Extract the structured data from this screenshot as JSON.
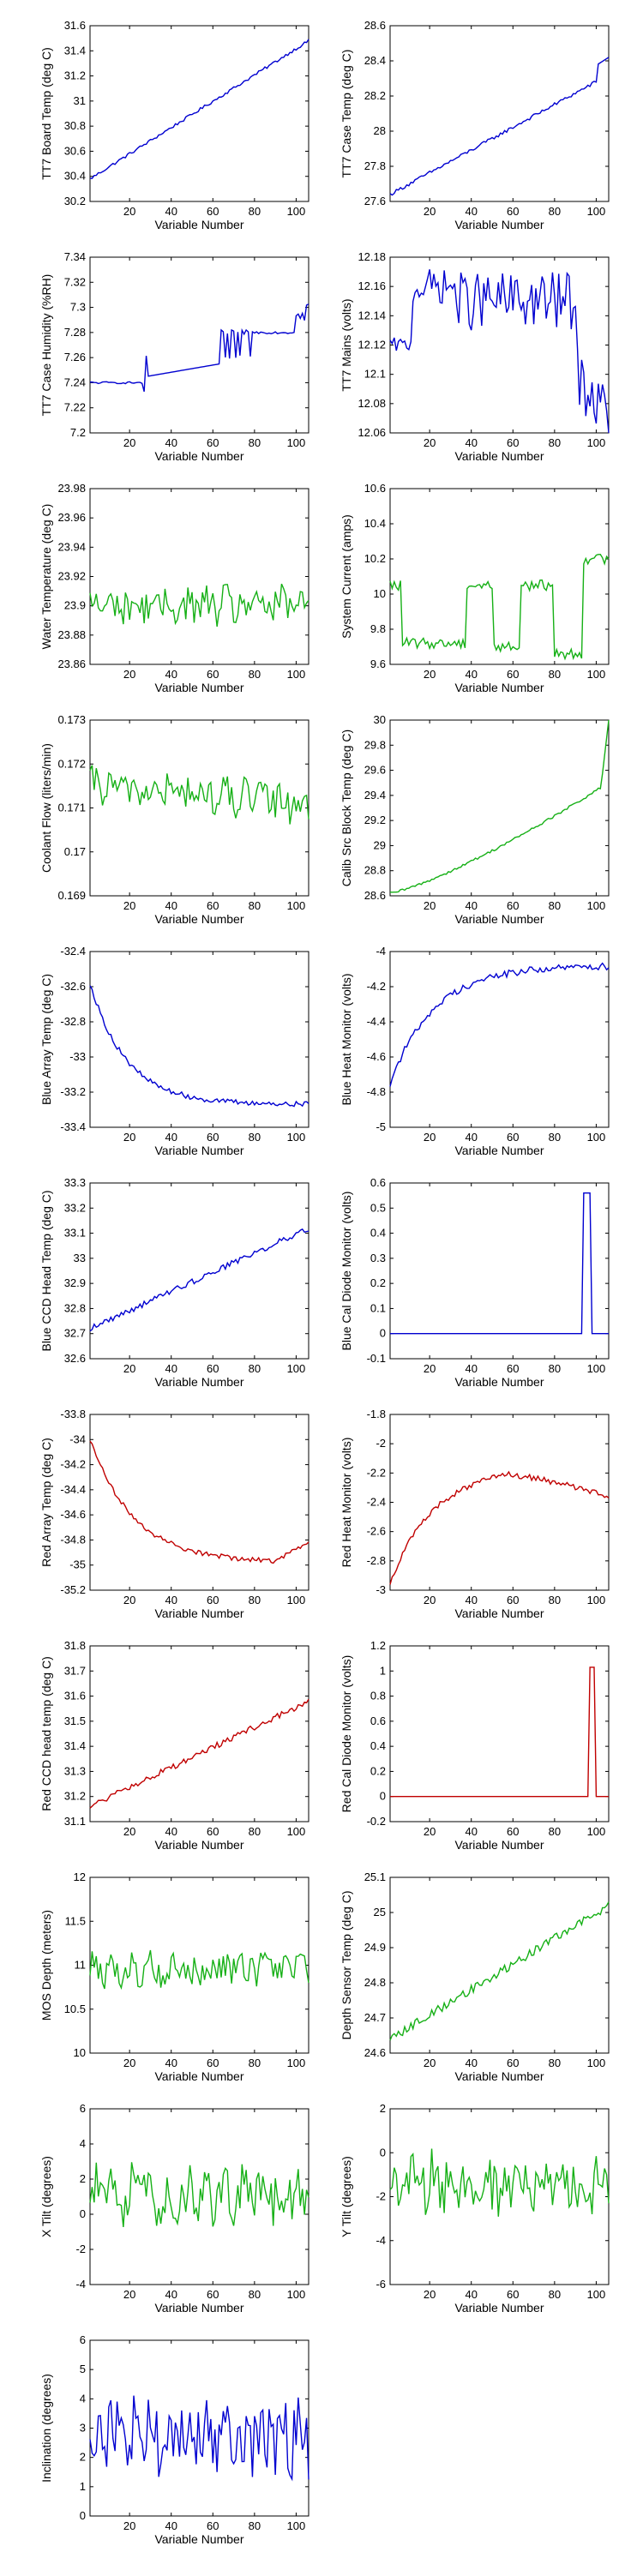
{
  "colors": {
    "blue": "#0000d0",
    "green": "#16b016",
    "red": "#c00000"
  },
  "chart_data": [
    {
      "type": "line",
      "ylabel": "TT7 Board Temp (deg C)",
      "xlabel": "Variable Number",
      "ylim": [
        30.2,
        31.6
      ],
      "yticks": [
        "30.2",
        "30.4",
        "30.6",
        "30.8",
        "31",
        "31.2",
        "31.4",
        "31.6"
      ],
      "color": "blue",
      "gen": {
        "kind": "trend",
        "y0": 30.38,
        "y1": 31.48,
        "noise": 0.012
      }
    },
    {
      "type": "line",
      "ylabel": "TT7 Case Temp (deg C)",
      "xlabel": "Variable Number",
      "ylim": [
        27.6,
        28.6
      ],
      "yticks": [
        "27.6",
        "27.8",
        "28",
        "28.2",
        "28.4",
        "28.6"
      ],
      "color": "blue",
      "gen": {
        "kind": "trend",
        "y0": 27.64,
        "y1": 28.32,
        "noise": 0.01,
        "tail": [
          0.95,
          28.38,
          1.0,
          28.42
        ]
      }
    },
    {
      "type": "line",
      "ylabel": "TT7 Case Humidity (%RH)",
      "xlabel": "Variable Number",
      "ylim": [
        7.2,
        7.34
      ],
      "yticks": [
        "7.2",
        "7.22",
        "7.24",
        "7.26",
        "7.28",
        "7.3",
        "7.32",
        "7.34"
      ],
      "color": "blue",
      "gen": {
        "kind": "humidity"
      }
    },
    {
      "type": "line",
      "ylabel": "TT7 Mains (volts)",
      "xlabel": "Variable Number",
      "ylim": [
        12.06,
        12.18
      ],
      "yticks": [
        "12.06",
        "12.08",
        "12.1",
        "12.12",
        "12.14",
        "12.16",
        "12.18"
      ],
      "color": "blue",
      "gen": {
        "kind": "mains"
      }
    },
    {
      "type": "line",
      "ylabel": "Water Temperature (deg C)",
      "xlabel": "Variable Number",
      "ylim": [
        23.86,
        23.98
      ],
      "yticks": [
        "23.86",
        "23.88",
        "23.9",
        "23.92",
        "23.94",
        "23.96",
        "23.98"
      ],
      "color": "green",
      "gen": {
        "kind": "noise",
        "mean": 23.9,
        "amp": 0.012
      }
    },
    {
      "type": "line",
      "ylabel": "System Current (amps)",
      "xlabel": "Variable Number",
      "ylim": [
        9.6,
        10.6
      ],
      "yticks": [
        "9.6",
        "9.8",
        "10",
        "10.2",
        "10.4",
        "10.6"
      ],
      "color": "green",
      "gen": {
        "kind": "steps",
        "segs": [
          [
            0,
            0.05,
            10.05
          ],
          [
            0.05,
            0.35,
            9.72
          ],
          [
            0.35,
            0.47,
            10.05
          ],
          [
            0.47,
            0.6,
            9.7
          ],
          [
            0.6,
            0.75,
            10.05
          ],
          [
            0.75,
            0.88,
            9.66
          ],
          [
            0.88,
            1,
            10.2
          ]
        ],
        "noise": 0.03
      }
    },
    {
      "type": "line",
      "ylabel": "Coolant Flow (liters/min)",
      "xlabel": "Variable Number",
      "ylim": [
        0.169,
        0.173
      ],
      "yticks": [
        "0.169",
        "0.17",
        "0.171",
        "0.172",
        "0.173"
      ],
      "color": "green",
      "gen": {
        "kind": "noise",
        "mean": 0.1715,
        "amp": 0.0004,
        "drift": -0.0004
      }
    },
    {
      "type": "line",
      "ylabel": "Calib Src Block Temp (deg C)",
      "xlabel": "Variable Number",
      "ylim": [
        28.6,
        30
      ],
      "yticks": [
        "28.6",
        "28.8",
        "29",
        "29.2",
        "29.4",
        "29.6",
        "29.8",
        "30"
      ],
      "color": "green",
      "gen": {
        "kind": "curve",
        "y0": 28.62,
        "y1": 29.5,
        "pow": 1.25,
        "noise": 0.01,
        "tail": [
          0.97,
          29.55,
          1.0,
          30.0
        ]
      }
    },
    {
      "type": "line",
      "ylabel": "Blue Array Temp (deg C)",
      "xlabel": "Variable Number",
      "ylim": [
        -33.4,
        -32.4
      ],
      "yticks": [
        "-33.4",
        "-33.2",
        "-33",
        "-32.8",
        "-32.6",
        "-32.4"
      ],
      "color": "blue",
      "gen": {
        "kind": "decay",
        "y0": -32.58,
        "y1": -33.27,
        "k": 6,
        "noise": 0.015
      }
    },
    {
      "type": "line",
      "ylabel": "Blue Heat Monitor (volts)",
      "xlabel": "Variable Number",
      "ylim": [
        -5,
        -4
      ],
      "yticks": [
        "-5",
        "-4.8",
        "-4.6",
        "-4.4",
        "-4.2",
        "-4"
      ],
      "color": "blue",
      "gen": {
        "kind": "rise",
        "y0": -4.75,
        "y1": -4.08,
        "k": 5,
        "noise": 0.02
      }
    },
    {
      "type": "line",
      "ylabel": "Blue CCD Head Temp (deg C)",
      "xlabel": "Variable Number",
      "ylim": [
        32.6,
        33.3
      ],
      "yticks": [
        "32.6",
        "32.7",
        "32.8",
        "32.9",
        "33",
        "33.1",
        "33.2",
        "33.3"
      ],
      "color": "blue",
      "gen": {
        "kind": "trend",
        "y0": 32.72,
        "y1": 33.12,
        "noise": 0.012
      }
    },
    {
      "type": "line",
      "ylabel": "Blue Cal Diode Monitor (volts)",
      "xlabel": "Variable Number",
      "ylim": [
        -0.1,
        0.6
      ],
      "yticks": [
        "-0.1",
        "0",
        "0.1",
        "0.2",
        "0.3",
        "0.4",
        "0.5",
        "0.6"
      ],
      "color": "blue",
      "gen": {
        "kind": "pulse",
        "base": 0,
        "peak": 0.56,
        "start": 0.88,
        "end": 0.92
      }
    },
    {
      "type": "line",
      "ylabel": "Red Array Temp (deg C)",
      "xlabel": "Variable Number",
      "ylim": [
        -35.2,
        -33.8
      ],
      "yticks": [
        "-35.2",
        "-35",
        "-34.8",
        "-34.6",
        "-34.4",
        "-34.2",
        "-34",
        "-33.8"
      ],
      "color": "red",
      "gen": {
        "kind": "decay",
        "y0": -34.0,
        "y1": -34.98,
        "k": 5,
        "noise": 0.02,
        "bump": [
          0.85,
          -34.82
        ]
      }
    },
    {
      "type": "line",
      "ylabel": "Red Heat Monitor (volts)",
      "xlabel": "Variable Number",
      "ylim": [
        -3,
        -1.8
      ],
      "yticks": [
        "-3",
        "-2.8",
        "-2.6",
        "-2.4",
        "-2.2",
        "-2",
        "-1.8"
      ],
      "color": "red",
      "gen": {
        "kind": "arch",
        "y0": -2.95,
        "peak": -2.16,
        "yend": -2.35,
        "noise": 0.02
      }
    },
    {
      "type": "line",
      "ylabel": "Red CCD head temp (deg C)",
      "xlabel": "Variable Number",
      "ylim": [
        31.1,
        31.8
      ],
      "yticks": [
        "31.1",
        "31.2",
        "31.3",
        "31.4",
        "31.5",
        "31.6",
        "31.7",
        "31.8"
      ],
      "color": "red",
      "gen": {
        "kind": "trend",
        "y0": 31.16,
        "y1": 31.58,
        "noise": 0.012
      }
    },
    {
      "type": "line",
      "ylabel": "Red Cal Diode Monitor (volts)",
      "xlabel": "Variable Number",
      "ylim": [
        -0.2,
        1.2
      ],
      "yticks": [
        "-0.2",
        "0",
        "0.2",
        "0.4",
        "0.6",
        "0.8",
        "1",
        "1.2"
      ],
      "color": "red",
      "gen": {
        "kind": "pulse",
        "base": 0,
        "peak": 1.03,
        "start": 0.91,
        "end": 0.94
      }
    },
    {
      "type": "line",
      "ylabel": "MOS Depth  (meters)",
      "xlabel": "Variable Number",
      "ylim": [
        10,
        12
      ],
      "yticks": [
        "10",
        "10.5",
        "11",
        "11.5",
        "12"
      ],
      "color": "green",
      "gen": {
        "kind": "noise",
        "mean": 10.95,
        "amp": 0.18
      }
    },
    {
      "type": "line",
      "ylabel": "Depth Sensor Temp (deg C)",
      "xlabel": "Variable Number",
      "ylim": [
        24.6,
        25.1
      ],
      "yticks": [
        "24.6",
        "24.7",
        "24.8",
        "24.9",
        "25",
        "25.1"
      ],
      "color": "green",
      "gen": {
        "kind": "trend",
        "y0": 24.64,
        "y1": 25.02,
        "noise": 0.012
      }
    },
    {
      "type": "line",
      "ylabel": "X Tilt  (degrees)",
      "xlabel": "Variable Number",
      "ylim": [
        -4,
        6
      ],
      "yticks": [
        "-4",
        "-2",
        "0",
        "2",
        "4",
        "6"
      ],
      "color": "green",
      "gen": {
        "kind": "noise",
        "mean": 1.0,
        "amp": 1.6
      }
    },
    {
      "type": "line",
      "ylabel": "Y Tilt  (degrees)",
      "xlabel": "Variable Number",
      "ylim": [
        -6,
        2
      ],
      "yticks": [
        "-6",
        "-4",
        "-2",
        "0",
        "2"
      ],
      "color": "green",
      "gen": {
        "kind": "noise",
        "mean": -1.5,
        "amp": 1.3
      }
    },
    {
      "type": "line",
      "ylabel": "Inclination  (degrees)",
      "xlabel": "Variable Number",
      "ylim": [
        0,
        6
      ],
      "yticks": [
        "0",
        "1",
        "2",
        "3",
        "4",
        "5",
        "6"
      ],
      "color": "blue",
      "gen": {
        "kind": "noise",
        "mean": 2.7,
        "amp": 1.2
      }
    }
  ],
  "xaxis": {
    "range": [
      1,
      106
    ],
    "ticks": [
      "20",
      "40",
      "60",
      "80",
      "100"
    ]
  }
}
